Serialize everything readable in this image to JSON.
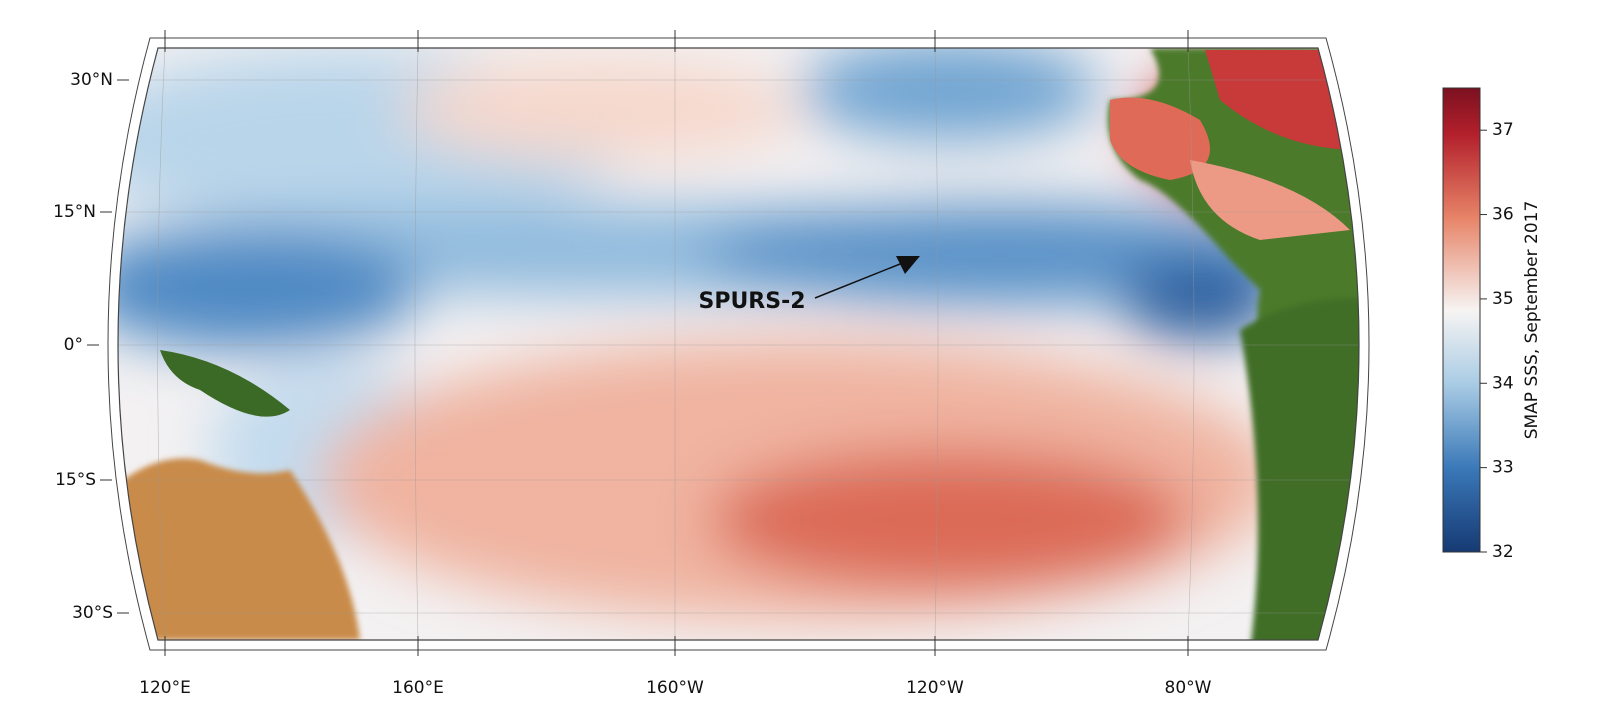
{
  "map": {
    "lat_labels": [
      "30°N",
      "15°N",
      "0°",
      "15°S",
      "30°S"
    ],
    "lon_labels": [
      "120°E",
      "160°E",
      "160°W",
      "120°W",
      "80°W"
    ],
    "annotation": "SPURS-2",
    "colorbar": {
      "label": "SMAP SSS, September 2017",
      "range": [
        32,
        37.5
      ],
      "ticks": [
        32,
        33,
        34,
        35,
        36,
        37
      ]
    }
  }
}
